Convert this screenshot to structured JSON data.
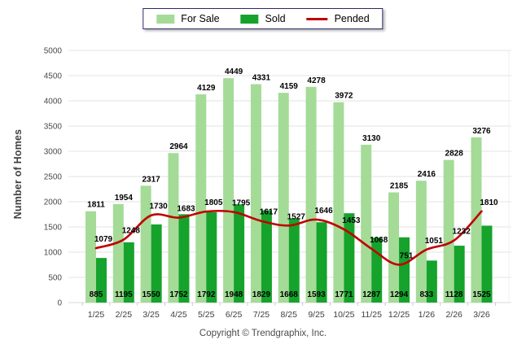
{
  "footer": {
    "copyright": "Copyright © Trendgraphix, Inc."
  },
  "chart_data": {
    "type": "bar",
    "title": "",
    "xlabel": "",
    "ylabel": "Number of Homes",
    "ylim": [
      0,
      5000
    ],
    "ytick_step": 500,
    "grid": true,
    "legend_position": "top-center",
    "categories": [
      "1/25",
      "2/25",
      "3/25",
      "4/25",
      "5/25",
      "6/25",
      "7/25",
      "8/25",
      "9/25",
      "10/25",
      "11/25",
      "12/25",
      "1/26",
      "2/26",
      "3/26"
    ],
    "series": [
      {
        "name": "For Sale",
        "type": "bar",
        "color": "#A4DB97",
        "values": [
          1811,
          1954,
          2317,
          2964,
          4129,
          4449,
          4331,
          4159,
          4278,
          3972,
          3130,
          2185,
          2416,
          2828,
          3276
        ]
      },
      {
        "name": "Sold",
        "type": "bar",
        "color": "#15A32C",
        "values": [
          885,
          1195,
          1550,
          1752,
          1792,
          1948,
          1829,
          1668,
          1593,
          1771,
          1287,
          1294,
          833,
          1128,
          1525
        ]
      },
      {
        "name": "Pended",
        "type": "line",
        "color": "#C00000",
        "values": [
          1079,
          1248,
          1730,
          1683,
          1805,
          1795,
          1617,
          1527,
          1646,
          1453,
          1068,
          751,
          1051,
          1232,
          1810
        ]
      }
    ],
    "colors": {
      "grid_line": "#E3E3E3",
      "axis_line": "#D8D8D8",
      "tick_text": "#4A4A4A",
      "value_label": "#000000",
      "legend_border": "#2B2B66"
    }
  }
}
